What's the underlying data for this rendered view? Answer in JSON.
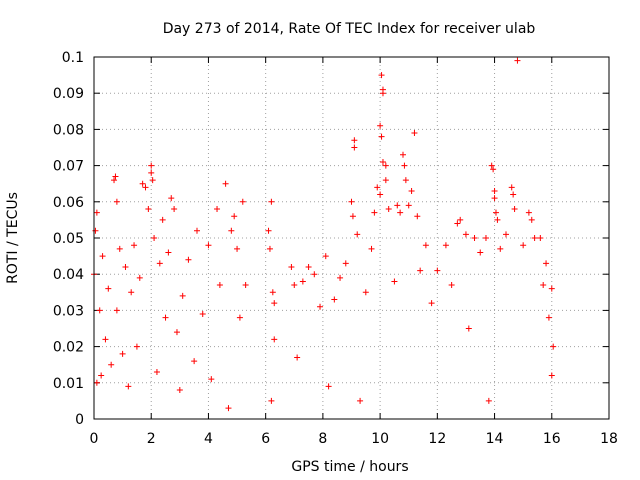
{
  "chart_data": {
    "type": "scatter",
    "title": "Day 273 of 2014, Rate Of TEC Index for receiver ulab",
    "xlabel": "GPS time / hours",
    "ylabel": "ROTI / TECUs",
    "xlim": [
      0,
      18
    ],
    "ylim": [
      0,
      0.1
    ],
    "x_ticks": [
      "0",
      "2",
      "4",
      "6",
      "8",
      "10",
      "12",
      "14",
      "16",
      "18"
    ],
    "y_ticks": [
      "0",
      "0.01",
      "0.02",
      "0.03",
      "0.04",
      "0.05",
      "0.06",
      "0.07",
      "0.08",
      "0.09",
      "0.1"
    ],
    "grid": true,
    "marker": "+",
    "series": [
      {
        "name": "ROTI",
        "color": "#ff0000",
        "points": [
          [
            0.0,
            0.04
          ],
          [
            0.05,
            0.052
          ],
          [
            0.1,
            0.057
          ],
          [
            0.1,
            0.01
          ],
          [
            0.2,
            0.03
          ],
          [
            0.25,
            0.012
          ],
          [
            0.3,
            0.045
          ],
          [
            0.4,
            0.022
          ],
          [
            0.5,
            0.036
          ],
          [
            0.6,
            0.015
          ],
          [
            0.7,
            0.066
          ],
          [
            0.75,
            0.067
          ],
          [
            0.8,
            0.06
          ],
          [
            0.8,
            0.03
          ],
          [
            0.9,
            0.047
          ],
          [
            1.0,
            0.018
          ],
          [
            1.1,
            0.042
          ],
          [
            1.2,
            0.009
          ],
          [
            1.3,
            0.035
          ],
          [
            1.4,
            0.048
          ],
          [
            1.5,
            0.02
          ],
          [
            1.6,
            0.039
          ],
          [
            1.7,
            0.065
          ],
          [
            1.8,
            0.064
          ],
          [
            1.9,
            0.058
          ],
          [
            2.0,
            0.07
          ],
          [
            2.0,
            0.068
          ],
          [
            2.05,
            0.066
          ],
          [
            2.1,
            0.05
          ],
          [
            2.2,
            0.013
          ],
          [
            2.3,
            0.043
          ],
          [
            2.4,
            0.055
          ],
          [
            2.5,
            0.028
          ],
          [
            2.6,
            0.046
          ],
          [
            2.7,
            0.061
          ],
          [
            2.8,
            0.058
          ],
          [
            2.9,
            0.024
          ],
          [
            3.0,
            0.008
          ],
          [
            3.1,
            0.034
          ],
          [
            3.3,
            0.044
          ],
          [
            3.5,
            0.016
          ],
          [
            3.6,
            0.052
          ],
          [
            3.8,
            0.029
          ],
          [
            4.0,
            0.048
          ],
          [
            4.1,
            0.011
          ],
          [
            4.3,
            0.058
          ],
          [
            4.4,
            0.037
          ],
          [
            4.6,
            0.065
          ],
          [
            4.7,
            0.003
          ],
          [
            4.8,
            0.052
          ],
          [
            4.9,
            0.056
          ],
          [
            5.0,
            0.047
          ],
          [
            5.1,
            0.028
          ],
          [
            5.2,
            0.06
          ],
          [
            5.3,
            0.037
          ],
          [
            6.1,
            0.052
          ],
          [
            6.15,
            0.047
          ],
          [
            6.2,
            0.06
          ],
          [
            6.2,
            0.005
          ],
          [
            6.25,
            0.035
          ],
          [
            6.3,
            0.022
          ],
          [
            6.3,
            0.032
          ],
          [
            6.9,
            0.042
          ],
          [
            7.0,
            0.037
          ],
          [
            7.1,
            0.017
          ],
          [
            7.3,
            0.038
          ],
          [
            7.5,
            0.042
          ],
          [
            7.7,
            0.04
          ],
          [
            7.9,
            0.031
          ],
          [
            8.1,
            0.045
          ],
          [
            8.2,
            0.009
          ],
          [
            8.4,
            0.033
          ],
          [
            8.6,
            0.039
          ],
          [
            8.8,
            0.043
          ],
          [
            9.0,
            0.06
          ],
          [
            9.05,
            0.056
          ],
          [
            9.1,
            0.077
          ],
          [
            9.1,
            0.075
          ],
          [
            9.2,
            0.051
          ],
          [
            9.3,
            0.005
          ],
          [
            9.5,
            0.035
          ],
          [
            9.7,
            0.047
          ],
          [
            9.8,
            0.057
          ],
          [
            9.9,
            0.064
          ],
          [
            10.0,
            0.062
          ],
          [
            10.05,
            0.095
          ],
          [
            10.1,
            0.091
          ],
          [
            10.1,
            0.09
          ],
          [
            10.0,
            0.081
          ],
          [
            10.05,
            0.078
          ],
          [
            10.1,
            0.071
          ],
          [
            10.2,
            0.07
          ],
          [
            10.2,
            0.066
          ],
          [
            10.3,
            0.058
          ],
          [
            10.5,
            0.038
          ],
          [
            10.6,
            0.059
          ],
          [
            10.7,
            0.057
          ],
          [
            10.8,
            0.073
          ],
          [
            10.85,
            0.07
          ],
          [
            10.9,
            0.066
          ],
          [
            11.0,
            0.059
          ],
          [
            11.1,
            0.063
          ],
          [
            11.2,
            0.079
          ],
          [
            11.3,
            0.056
          ],
          [
            11.4,
            0.041
          ],
          [
            11.6,
            0.048
          ],
          [
            11.8,
            0.032
          ],
          [
            12.0,
            0.041
          ],
          [
            12.3,
            0.048
          ],
          [
            12.5,
            0.037
          ],
          [
            12.7,
            0.054
          ],
          [
            12.8,
            0.055
          ],
          [
            13.0,
            0.051
          ],
          [
            13.1,
            0.025
          ],
          [
            13.3,
            0.05
          ],
          [
            13.5,
            0.046
          ],
          [
            13.7,
            0.05
          ],
          [
            13.8,
            0.005
          ],
          [
            13.9,
            0.07
          ],
          [
            13.95,
            0.069
          ],
          [
            14.0,
            0.063
          ],
          [
            14.0,
            0.061
          ],
          [
            14.05,
            0.057
          ],
          [
            14.1,
            0.055
          ],
          [
            14.2,
            0.047
          ],
          [
            14.4,
            0.051
          ],
          [
            14.6,
            0.064
          ],
          [
            14.65,
            0.062
          ],
          [
            14.7,
            0.058
          ],
          [
            14.8,
            0.099
          ],
          [
            15.0,
            0.048
          ],
          [
            15.2,
            0.057
          ],
          [
            15.3,
            0.055
          ],
          [
            15.4,
            0.05
          ],
          [
            15.6,
            0.05
          ],
          [
            15.7,
            0.037
          ],
          [
            15.8,
            0.043
          ],
          [
            15.9,
            0.028
          ],
          [
            16.0,
            0.036
          ],
          [
            16.0,
            0.012
          ],
          [
            16.05,
            0.02
          ]
        ]
      }
    ]
  }
}
